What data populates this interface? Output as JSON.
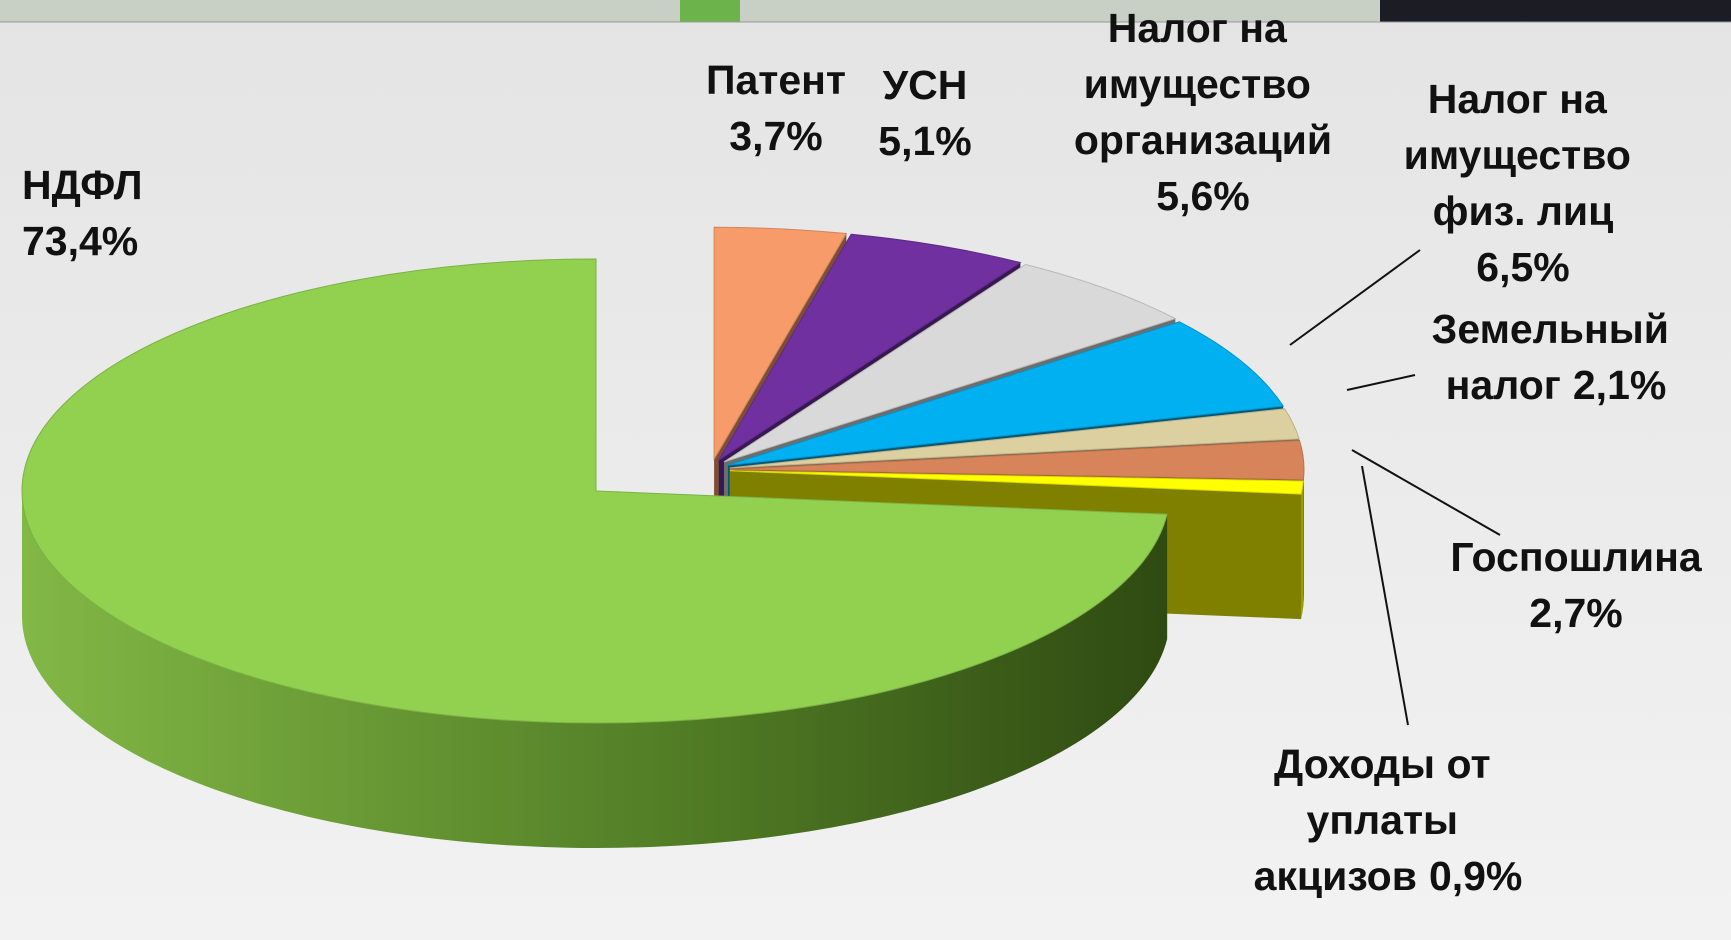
{
  "chart_data": {
    "type": "pie3d",
    "categories": [
      "НДФЛ",
      "Патент",
      "УСН",
      "Налог на имущество организаций",
      "Налог на имущество физ. лиц",
      "Земельный налог",
      "Госпошлина",
      "Доходы от уплаты акцизов"
    ],
    "values": [
      73.4,
      3.7,
      5.1,
      5.6,
      6.5,
      2.1,
      2.7,
      0.9
    ],
    "value_labels": [
      "73,4%",
      "3,7%",
      "5,1%",
      "5,6%",
      "6,5%",
      "2,1%",
      "2,7%",
      "0,9%"
    ],
    "colors": [
      "#92d050",
      "#f79b6a",
      "#7030a0",
      "#d9d9d9",
      "#00b0f0",
      "#ddd0a0",
      "#d8845a",
      "#ffff00"
    ]
  }
}
